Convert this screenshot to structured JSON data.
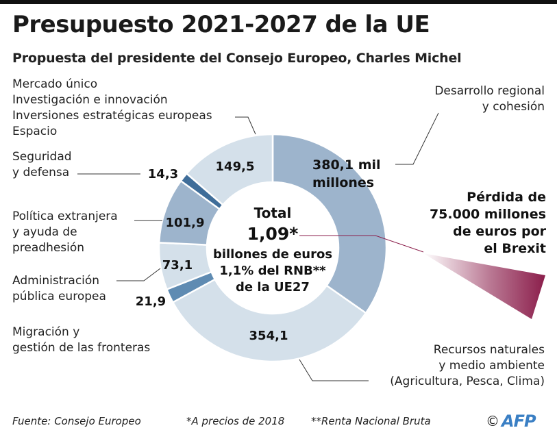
{
  "title": "Presupuesto 2021-2027 de la UE",
  "subtitle": "Propuesta del presidente del Consejo Europeo, Charles Michel",
  "center": {
    "line1": "Total",
    "line2": "1,09*",
    "line3": "billones de euros",
    "line4": "1,1% del RNB**",
    "line5": "de la UE27"
  },
  "labels": {
    "mercado": [
      "Mercado único",
      "Investigación e innovación",
      "Inversiones estratégicas europeas",
      "Espacio"
    ],
    "seguridad": [
      "Seguridad",
      "y defensa"
    ],
    "politica": [
      "Política extranjera",
      "y ayuda de",
      "preadhesión"
    ],
    "administracion": [
      "Administración",
      "pública europea"
    ],
    "migracion": [
      "Migración y",
      "gestión de las fronteras"
    ],
    "desarrollo": [
      "Desarrollo regional",
      "y cohesión"
    ],
    "recursos": [
      "Recursos naturales",
      "y medio ambiente",
      "(Agricultura, Pesca, Clima)"
    ]
  },
  "brexit": [
    "Pérdida de",
    "75.000 millones",
    "de euros por",
    "el Brexit"
  ],
  "footer": {
    "source": "Fuente: Consejo Europeo",
    "note1": "*A precios de 2018",
    "note2": "**Renta Nacional Bruta",
    "copyright": "©",
    "brand": "AFP"
  },
  "chart_data": {
    "type": "pie",
    "title": "Presupuesto 2021-2027 de la UE",
    "unit": "mil millones de euros",
    "slices": [
      {
        "name": "Desarrollo regional y cohesión",
        "value": 380.1,
        "label": "380,1 mil millones",
        "color": "#9db4cc"
      },
      {
        "name": "Recursos naturales y medio ambiente (Agricultura, Pesca, Clima)",
        "value": 354.1,
        "label": "354,1",
        "color": "#d4e0ea"
      },
      {
        "name": "Migración y gestión de las fronteras",
        "value": 21.9,
        "label": "21,9",
        "color": "#5f8bb2"
      },
      {
        "name": "Administración pública europea",
        "value": 73.1,
        "label": "73,1",
        "color": "#d4e0ea"
      },
      {
        "name": "Política extranjera y ayuda de preadhesión",
        "value": 101.9,
        "label": "101,9",
        "color": "#9db4cc"
      },
      {
        "name": "Seguridad y defensa",
        "value": 14.3,
        "label": "14,3",
        "color": "#3f6d99"
      },
      {
        "name": "Mercado único, Investigación e innovación, Inversiones estratégicas europeas, Espacio",
        "value": 149.5,
        "label": "149,5",
        "color": "#d4e0ea"
      }
    ],
    "total_label": "1,09 billones de euros",
    "annotation": "Pérdida de 75.000 millones de euros por el Brexit",
    "brexit_color": "#8b1e4b"
  }
}
